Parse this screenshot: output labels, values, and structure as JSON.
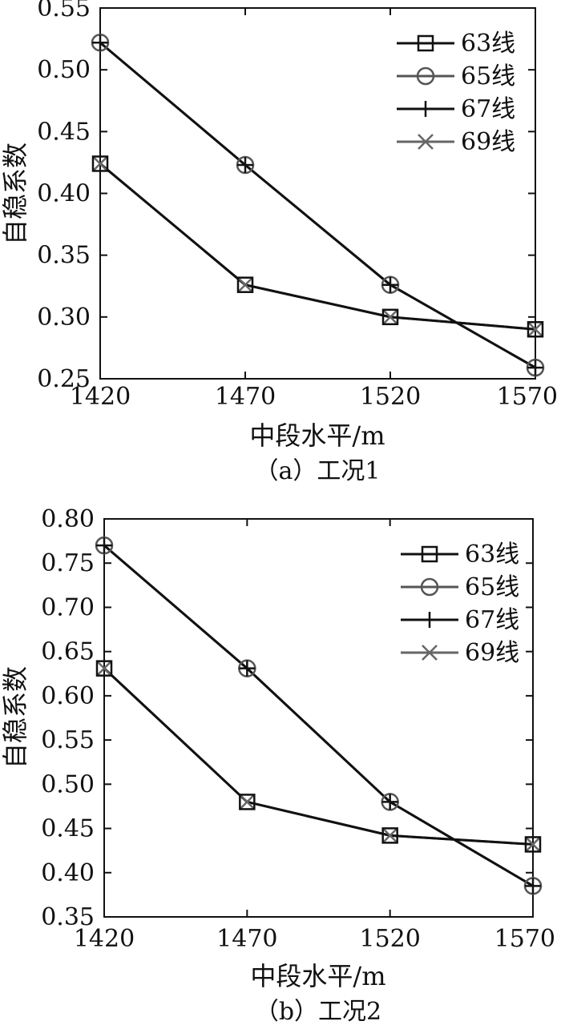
{
  "chart_data": [
    {
      "type": "line",
      "caption": "（a）工况1",
      "xlabel": "中段水平/m",
      "ylabel": "自稳系数",
      "x": [
        1420,
        1470,
        1520,
        1570
      ],
      "xticks": [
        "1420",
        "1470",
        "1520",
        "1570"
      ],
      "ylim": [
        0.25,
        0.55
      ],
      "yticks": [
        "0.25",
        "0.30",
        "0.35",
        "0.40",
        "0.45",
        "0.50",
        "0.55"
      ],
      "grid": false,
      "legend_position": "top-right",
      "series": [
        {
          "name": "63线",
          "marker": "square",
          "color": "#111111",
          "values": [
            0.424,
            0.326,
            0.3,
            0.29
          ]
        },
        {
          "name": "65线",
          "marker": "circle",
          "color": "#555555",
          "values": [
            0.522,
            0.423,
            0.326,
            0.259
          ]
        },
        {
          "name": "67线",
          "marker": "plus",
          "color": "#111111",
          "values": [
            0.522,
            0.423,
            0.326,
            0.259
          ]
        },
        {
          "name": "69线",
          "marker": "cross",
          "color": "#666666",
          "values": [
            0.424,
            0.326,
            0.3,
            0.29
          ]
        }
      ]
    },
    {
      "type": "line",
      "caption": "（b）工况2",
      "xlabel": "中段水平/m",
      "ylabel": "自稳系数",
      "x": [
        1420,
        1470,
        1520,
        1570
      ],
      "xticks": [
        "1420",
        "1470",
        "1520",
        "1570"
      ],
      "ylim": [
        0.35,
        0.8
      ],
      "yticks": [
        "0.35",
        "0.40",
        "0.45",
        "0.50",
        "0.55",
        "0.60",
        "0.65",
        "0.70",
        "0.75",
        "0.80"
      ],
      "grid": false,
      "legend_position": "top-right",
      "series": [
        {
          "name": "63线",
          "marker": "square",
          "color": "#111111",
          "values": [
            0.631,
            0.48,
            0.442,
            0.432
          ]
        },
        {
          "name": "65线",
          "marker": "circle",
          "color": "#555555",
          "values": [
            0.77,
            0.631,
            0.48,
            0.385
          ]
        },
        {
          "name": "67线",
          "marker": "plus",
          "color": "#111111",
          "values": [
            0.77,
            0.631,
            0.48,
            0.385
          ]
        },
        {
          "name": "69线",
          "marker": "cross",
          "color": "#666666",
          "values": [
            0.631,
            0.48,
            0.442,
            0.432
          ]
        }
      ]
    }
  ]
}
